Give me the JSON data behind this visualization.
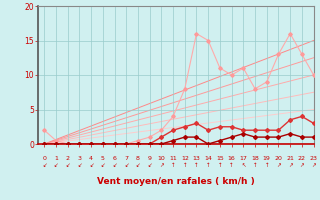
{
  "xlabel": "Vent moyen/en rafales ( km/h )",
  "bg_color": "#d0f0f0",
  "grid_color": "#99cccc",
  "axis_color": "#cc0000",
  "xlim": [
    -0.5,
    23
  ],
  "ylim": [
    0,
    20
  ],
  "yticks": [
    0,
    5,
    10,
    15,
    20
  ],
  "xticks": [
    0,
    1,
    2,
    3,
    4,
    5,
    6,
    7,
    8,
    9,
    10,
    11,
    12,
    13,
    14,
    15,
    16,
    17,
    18,
    19,
    20,
    21,
    22,
    23
  ],
  "diag1_y_end": 5.0,
  "diag2_y_end": 7.5,
  "diag3_y_end": 10.0,
  "diag4_y_end": 12.5,
  "diag5_y_end": 15.0,
  "line_pink_x": [
    0,
    1,
    2,
    3,
    4,
    5,
    6,
    7,
    8,
    9,
    10,
    11,
    12,
    13,
    14,
    15,
    16,
    17,
    18,
    19,
    20,
    21,
    22,
    23
  ],
  "line_pink_y": [
    2,
    0.5,
    0,
    0,
    0,
    0,
    0,
    0,
    0.5,
    1,
    2,
    4,
    8,
    16,
    15,
    11,
    10,
    11,
    8,
    9,
    13,
    16,
    13,
    10
  ],
  "line_med_x": [
    0,
    1,
    2,
    3,
    4,
    5,
    6,
    7,
    8,
    9,
    10,
    11,
    12,
    13,
    14,
    15,
    16,
    17,
    18,
    19,
    20,
    21,
    22,
    23
  ],
  "line_med_y": [
    0,
    0,
    0,
    0,
    0,
    0,
    0,
    0,
    0,
    0,
    1,
    2,
    2.5,
    3,
    2,
    2.5,
    2.5,
    2,
    2,
    2,
    2,
    3.5,
    4,
    3
  ],
  "line_dark_x": [
    0,
    1,
    2,
    3,
    4,
    5,
    6,
    7,
    8,
    9,
    10,
    11,
    12,
    13,
    14,
    15,
    16,
    17,
    18,
    19,
    20,
    21,
    22,
    23
  ],
  "line_dark_y": [
    0,
    0,
    0,
    0,
    0,
    0,
    0,
    0,
    0,
    0,
    0,
    0.5,
    1,
    1,
    0,
    0.5,
    1,
    1.5,
    1,
    1,
    1,
    1.5,
    1,
    1
  ],
  "line_black_x": [
    0,
    1,
    2,
    3,
    4,
    5,
    6,
    7,
    8,
    9,
    10,
    11,
    12,
    13,
    14,
    15,
    16,
    17,
    18,
    19,
    20,
    21,
    22,
    23
  ],
  "line_black_y": [
    0,
    0,
    0,
    0,
    0,
    0,
    0,
    0,
    0,
    0,
    0,
    0,
    0,
    0,
    0,
    0,
    0,
    0,
    0,
    0,
    0,
    0,
    0,
    0
  ],
  "wind_dirs": [
    "sw",
    "sw",
    "sw",
    "sw",
    "sw",
    "sw",
    "sw",
    "sw",
    "sw",
    "sw",
    "ne",
    "n",
    "n",
    "n",
    "n",
    "n",
    "n",
    "nw",
    "n",
    "n",
    "ne",
    "ne",
    "ne",
    "ne"
  ]
}
